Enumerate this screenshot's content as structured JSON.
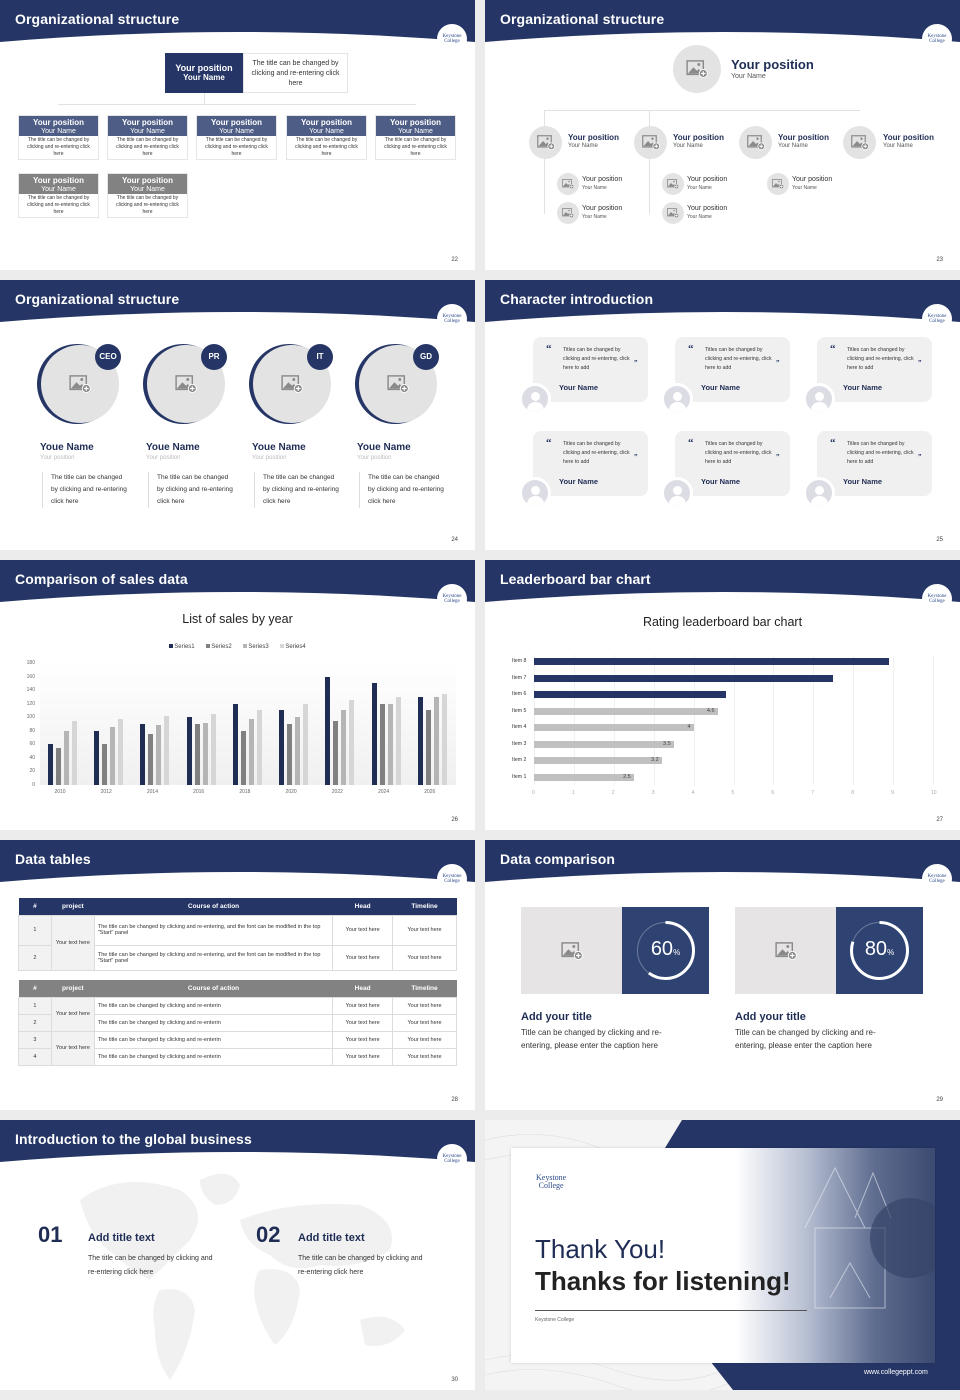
{
  "theme": {
    "navy": "#253666",
    "slate": "#4d5d85",
    "gray": "#828282",
    "light_gray": "#e3e3e3"
  },
  "logo": {
    "line1": "Keystone",
    "line2": "College"
  },
  "slides": {
    "s22": {
      "title": "Organizational structure",
      "page": "22",
      "top": {
        "position": "Your position",
        "name": "Your Name",
        "desc": "The title can be changed by clicking and re-entering click here"
      },
      "cards": [
        {
          "position": "Your position",
          "name": "Your Name",
          "desc": "The title can be changed by clicking and re-entering click here"
        },
        {
          "position": "Your position",
          "name": "Your Name",
          "desc": "The title can be changed by clicking and re-entering click here"
        },
        {
          "position": "Your position",
          "name": "Your Name",
          "desc": "The title can be changed by clicking and re-entering click here"
        },
        {
          "position": "Your position",
          "name": "Your Name",
          "desc": "The title can be changed by clicking and re-entering click here"
        },
        {
          "position": "Your position",
          "name": "Your Name",
          "desc": "The title can be changed by clicking and re-entering click here"
        },
        {
          "position": "Your position",
          "name": "Your Name",
          "desc": "The title can be changed by clicking and re-entering click here"
        },
        {
          "position": "Your position",
          "name": "Your Name",
          "desc": "The title can be changed by clicking and re-entering click here"
        }
      ]
    },
    "s23": {
      "title": "Organizational structure",
      "page": "23",
      "top": {
        "position": "Your position",
        "name": "Your Name"
      },
      "level1": [
        {
          "position": "Your position",
          "name": "Your Name"
        },
        {
          "position": "Your position",
          "name": "Your Name"
        },
        {
          "position": "Your position",
          "name": "Your Name"
        },
        {
          "position": "Your position",
          "name": "Your Name"
        }
      ],
      "level2": [
        {
          "position": "Your position",
          "name": "Your Name"
        },
        {
          "position": "Your position",
          "name": "Your Name"
        },
        {
          "position": "Your position",
          "name": "Your Name"
        },
        {
          "position": "Your position",
          "name": "Your Name"
        },
        {
          "position": "Your position",
          "name": "Your Name"
        }
      ]
    },
    "s24": {
      "title": "Organizational structure",
      "page": "24",
      "people": [
        {
          "badge": "CEO",
          "name": "Youe Name",
          "position": "Your position",
          "desc": "The title can be changed by clicking and re-entering click here"
        },
        {
          "badge": "PR",
          "name": "Youe Name",
          "position": "Your position",
          "desc": "The title can be changed by clicking and re-entering click here"
        },
        {
          "badge": "IT",
          "name": "Youe Name",
          "position": "Your position",
          "desc": "The title can be changed by clicking and re-entering click here"
        },
        {
          "badge": "GD",
          "name": "Youe Name",
          "position": "Your position",
          "desc": "The title can be changed by clicking and re-entering click here"
        }
      ]
    },
    "s25": {
      "title": "Character introduction",
      "page": "25",
      "quote_open": "“",
      "quote_close": "”",
      "cards": [
        {
          "text": "Titles can be changed by clicking and re-entering, click here to add",
          "name": "Your Name"
        },
        {
          "text": "Titles can be changed by clicking and re-entering, click here to add",
          "name": "Your Name"
        },
        {
          "text": "Titles can be changed by clicking and re-entering, click here to add",
          "name": "Your Name"
        },
        {
          "text": "Titles can be changed by clicking and re-entering, click here to add",
          "name": "Your Name"
        },
        {
          "text": "Titles can be changed by clicking and re-entering, click here to add",
          "name": "Your Name"
        },
        {
          "text": "Titles can be changed by clicking and re-entering, click here to add",
          "name": "Your Name"
        }
      ]
    },
    "s26": {
      "title": "Comparison of sales data",
      "page": "26"
    },
    "s27": {
      "title": "Leaderboard bar chart",
      "page": "27"
    },
    "s28": {
      "title": "Data tables",
      "page": "28",
      "headers": [
        "#",
        "project",
        "Course of action",
        "Head",
        "Timeline"
      ],
      "table1": {
        "project": "Your text here",
        "rows": [
          {
            "num": "1",
            "action": "The title can be changed by clicking and re-entering, and the font can be modified in the top \"Start\" panel",
            "head": "Your text here",
            "timeline": "Your text here"
          },
          {
            "num": "2",
            "action": "The title can be changed by clicking and re-entering, and the font can be modified in the top \"Start\" panel",
            "head": "Your text here",
            "timeline": "Your text here"
          }
        ]
      },
      "table2": {
        "projects": [
          "Your text here",
          "Your text here"
        ],
        "rows": [
          {
            "num": "1",
            "action": "The title can be changed by clicking and re-enterin",
            "head": "Your text here",
            "timeline": "Your text here"
          },
          {
            "num": "2",
            "action": "The title can be changed by clicking and re-enterin",
            "head": "Your text here",
            "timeline": "Your text here"
          },
          {
            "num": "3",
            "action": "The title can be changed by clicking and re-enterin",
            "head": "Your text here",
            "timeline": "Your text here"
          },
          {
            "num": "4",
            "action": "The title can be changed by clicking and re-enterin",
            "head": "Your text here",
            "timeline": "Your text here"
          }
        ]
      }
    },
    "s29": {
      "title": "Data comparison",
      "page": "29",
      "items": [
        {
          "value": "60",
          "unit": "%",
          "percent": 60,
          "title": "Add your title",
          "text": "Title can be changed by clicking and re-entering, please enter the caption here"
        },
        {
          "value": "80",
          "unit": "%",
          "percent": 80,
          "title": "Add your title",
          "text": "Title can be changed by clicking and re-entering, please enter the caption here"
        }
      ]
    },
    "s30": {
      "title": "Introduction to the global business",
      "page": "30",
      "items": [
        {
          "num": "01",
          "title": "Add title text",
          "text": "The title can be changed by clicking and re-entering click here"
        },
        {
          "num": "02",
          "title": "Add title text",
          "text": "The title can be changed by clicking and re-entering click here"
        }
      ]
    },
    "s31": {
      "logo_line1": "Keystone",
      "logo_line2": "College",
      "line1": "Thank You!",
      "line2": "Thanks for listening!",
      "subtitle": "Keystone College",
      "url": "www.collegeppt.com"
    }
  },
  "chart_data": [
    {
      "type": "bar",
      "title": "List of sales by year",
      "categories": [
        "2010",
        "2012",
        "2014",
        "2016",
        "2018",
        "2020",
        "2022",
        "2024",
        "2026"
      ],
      "series": [
        {
          "name": "Series1",
          "color": "#1f2d55",
          "values": [
            60,
            80,
            90,
            100,
            120,
            110,
            160,
            150,
            130
          ]
        },
        {
          "name": "Series2",
          "color": "#808080",
          "values": [
            55,
            60,
            75,
            90,
            80,
            90,
            95,
            120,
            110
          ]
        },
        {
          "name": "Series3",
          "color": "#b5b5b5",
          "values": [
            80,
            85,
            88,
            92,
            97,
            100,
            110,
            120,
            130
          ]
        },
        {
          "name": "Series4",
          "color": "#d6d6d6",
          "values": [
            95,
            98,
            102,
            105,
            110,
            120,
            125,
            130,
            135
          ]
        }
      ],
      "xlabel": "",
      "ylabel": "",
      "ylim": [
        0,
        180
      ],
      "yticks": [
        0,
        20,
        40,
        60,
        80,
        100,
        120,
        140,
        160,
        180
      ],
      "legend_position": "top",
      "grid": false
    },
    {
      "type": "bar",
      "orientation": "horizontal",
      "title": "Rating leaderboard bar chart",
      "categories": [
        "Item 8",
        "Item 7",
        "Item 6",
        "Item 5",
        "Item 4",
        "Item 3",
        "Item 2",
        "Item 1"
      ],
      "values": [
        8.9,
        7.5,
        4.8,
        4.6,
        4,
        3.5,
        3.2,
        2.5
      ],
      "data_labels": [
        "",
        "",
        "",
        "4.6",
        "4",
        "3.5",
        "3.2",
        "2.5"
      ],
      "highlight_top": 3,
      "colors": {
        "highlight": "#253666",
        "normal": "#c0c0c0"
      },
      "xlim": [
        0,
        10
      ],
      "xticks": [
        0,
        1,
        2,
        3,
        4,
        5,
        6,
        7,
        8,
        9,
        10
      ],
      "grid": true
    }
  ]
}
